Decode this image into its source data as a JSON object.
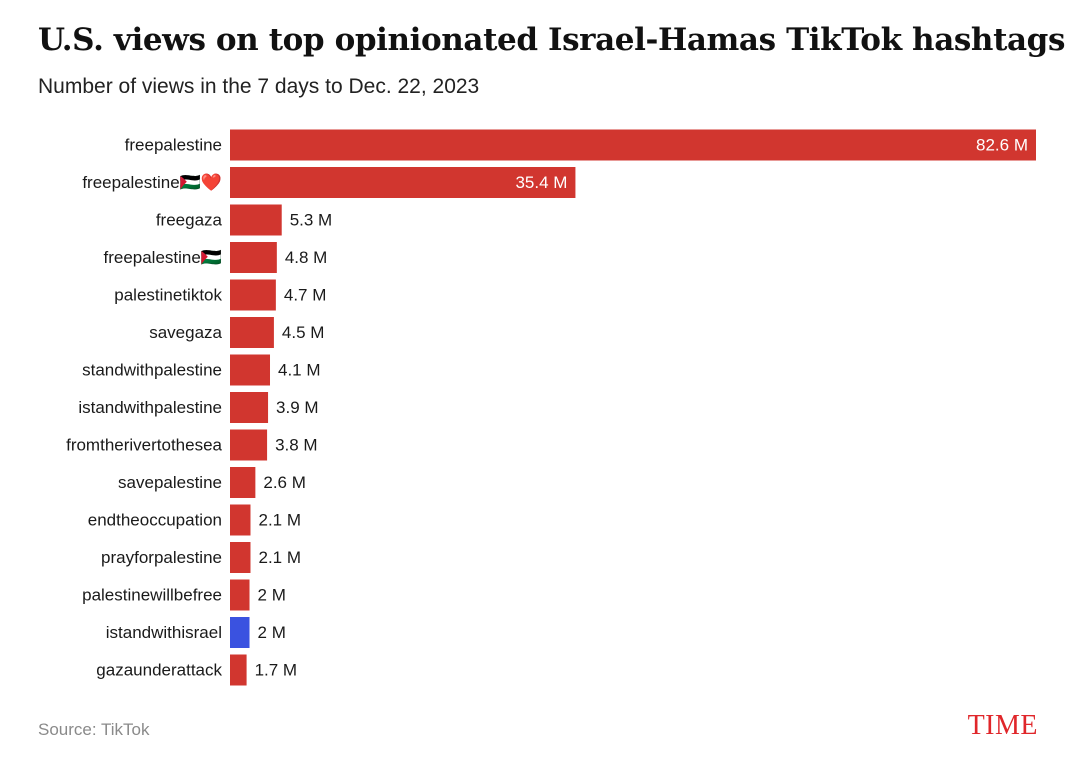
{
  "header": {
    "title": "U.S. views on top opinionated Israel-Hamas TikTok hashtags",
    "subtitle": "Number of views in the 7 days to Dec. 22, 2023"
  },
  "footer": {
    "source": "Source: TikTok",
    "brand": "TIME"
  },
  "colors": {
    "bar_default": "#d1362f",
    "bar_highlight": "#3a52e0",
    "label_inside": "#ffffff",
    "label_outside": "#1a1a1a",
    "brand": "#e0262a"
  },
  "chart_data": {
    "type": "bar",
    "orientation": "horizontal",
    "title": "U.S. views on top opinionated Israel-Hamas TikTok hashtags",
    "subtitle": "Number of views in the 7 days to Dec. 22, 2023",
    "unit": "M",
    "xlim": [
      0,
      82.6
    ],
    "grid": false,
    "legend": "none",
    "categories": [
      "freepalestine",
      "freepalestine🇵🇸❤️",
      "freegaza",
      "freepalestine🇵🇸",
      "palestinetiktok",
      "savegaza",
      "standwithpalestine",
      "istandwithpalestine",
      "fromtherivertothesea",
      "savepalestine",
      "endtheoccupation",
      "prayforpalestine",
      "palestinewillbefree",
      "istandwithisrael",
      "gazaunderattack"
    ],
    "values": [
      82.6,
      35.4,
      5.3,
      4.8,
      4.7,
      4.5,
      4.1,
      3.9,
      3.8,
      2.6,
      2.1,
      2.1,
      2,
      2,
      1.7
    ],
    "value_labels": [
      "82.6 M",
      "35.4 M",
      "5.3 M",
      "4.8 M",
      "4.7 M",
      "4.5 M",
      "4.1 M",
      "3.9 M",
      "3.8 M",
      "2.6 M",
      "2.1 M",
      "2.1 M",
      "2 M",
      "2 M",
      "1.7 M"
    ],
    "highlight": "istandwithisrael"
  }
}
